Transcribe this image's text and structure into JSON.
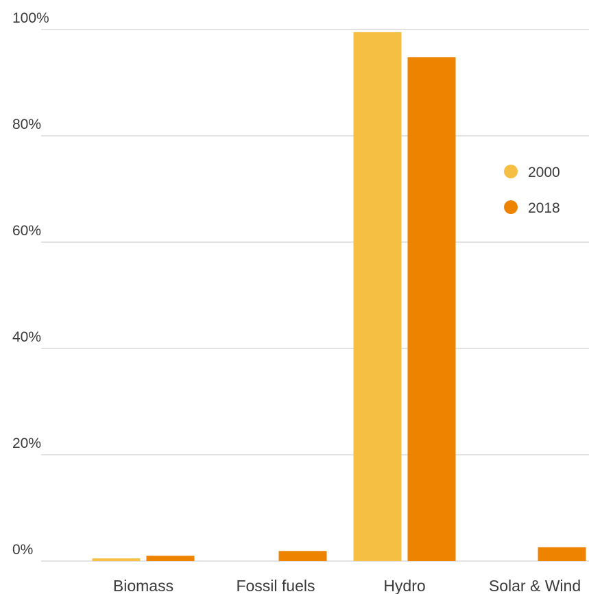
{
  "colors": {
    "series_2000": "#f4bf42",
    "series_2018": "#ee8300",
    "grid": "#d9d9d9",
    "text": "#3a3a3a"
  },
  "chart_data": {
    "type": "bar",
    "title": "",
    "xlabel": "",
    "ylabel": "",
    "categories": [
      "Biomass",
      "Fossil fuels",
      "Hydro",
      "Solar & Wind"
    ],
    "series": [
      {
        "name": "2000",
        "values": [
          0.5,
          0,
          99.5,
          0
        ]
      },
      {
        "name": "2018",
        "values": [
          1.0,
          1.9,
          94.8,
          2.6
        ]
      }
    ],
    "ylim": [
      0,
      100
    ],
    "yticks": [
      0,
      20,
      40,
      60,
      80,
      100
    ],
    "ytick_labels": [
      "0%",
      "20%",
      "40%",
      "60%",
      "80%",
      "100%"
    ],
    "grid": true,
    "legend_position": "right"
  }
}
